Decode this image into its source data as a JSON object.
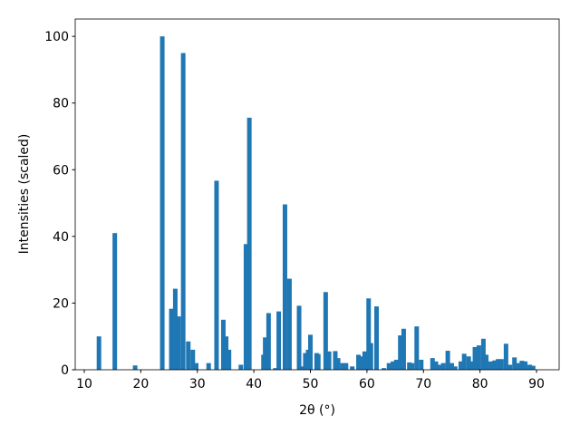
{
  "chart_data": {
    "type": "bar",
    "xlabel": "2θ (°)",
    "ylabel": "Intensities (scaled)",
    "color": "#1f77b4",
    "x": [
      12.6,
      15.4,
      19.0,
      23.8,
      25.4,
      26.1,
      26.7,
      27.5,
      28.4,
      29.2,
      29.8,
      32.0,
      33.4,
      34.6,
      35.1,
      35.6,
      37.7,
      38.6,
      39.2,
      41.7,
      42.0,
      42.6,
      43.8,
      44.4,
      45.5,
      46.3,
      48.0,
      48.6,
      49.1,
      49.6,
      50.0,
      51.1,
      51.4,
      52.7,
      53.3,
      54.4,
      54.9,
      55.7,
      56.3,
      57.4,
      58.5,
      59.1,
      59.6,
      60.3,
      60.7,
      61.7,
      63.0,
      63.9,
      64.6,
      65.2,
      65.9,
      66.5,
      67.5,
      68.0,
      68.8,
      69.6,
      71.6,
      72.2,
      72.9,
      73.5,
      74.3,
      75.0,
      75.6,
      76.6,
      77.2,
      78.0,
      78.5,
      79.1,
      79.8,
      80.6,
      81.1,
      81.9,
      82.6,
      83.2,
      83.8,
      84.6,
      85.3,
      86.1,
      86.7,
      87.4,
      88.0,
      88.8,
      89.4
    ],
    "values": [
      10,
      41,
      1.3,
      100,
      18.3,
      24.3,
      16,
      95,
      8.5,
      6,
      2,
      2,
      56.7,
      15,
      10,
      6,
      1.5,
      37.7,
      75.6,
      4.5,
      9.7,
      17,
      0.5,
      17.5,
      49.6,
      27.3,
      19.2,
      1,
      5,
      6,
      10.5,
      5,
      4.7,
      23.3,
      5.5,
      5.6,
      3.5,
      2,
      2,
      1,
      4.5,
      4,
      5.5,
      21.4,
      8,
      19,
      0.5,
      2,
      2.5,
      3,
      10.3,
      12.3,
      2.2,
      2,
      13,
      3,
      3.5,
      2.5,
      1.5,
      2,
      5.7,
      2,
      1,
      2.5,
      4.8,
      4,
      2.5,
      6.8,
      7.3,
      9.3,
      4.5,
      2.5,
      2.8,
      3.2,
      3.2,
      7.8,
      1.5,
      3.7,
      2,
      2.7,
      2.5,
      1.5,
      1.2
    ],
    "xlim": [
      8.4,
      94.0
    ],
    "ylim": [
      0,
      105.2
    ],
    "xticks": [
      10,
      20,
      30,
      40,
      50,
      60,
      70,
      80,
      90
    ],
    "yticks": [
      0,
      20,
      40,
      60,
      80,
      100
    ]
  }
}
